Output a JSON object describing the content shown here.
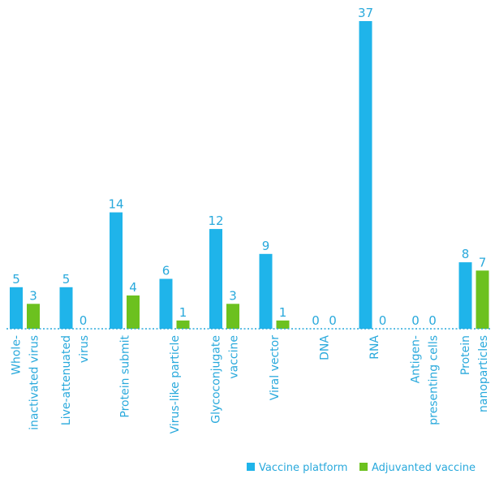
{
  "chart_data": {
    "type": "bar",
    "categories": [
      [
        "Whole-",
        "inactivated virus"
      ],
      [
        "Live-attenuated",
        "virus"
      ],
      [
        "Protein submit"
      ],
      [
        "Virus-like particle"
      ],
      [
        "Glycoconjugate",
        "vaccine"
      ],
      [
        "Viral vector"
      ],
      [
        "DNA"
      ],
      [
        "RNA"
      ],
      [
        "Antigen-",
        "presenting cells"
      ],
      [
        "Protein",
        "nanoparticles"
      ]
    ],
    "series": [
      {
        "name": "Vaccine platform",
        "color": "#1fb4ea",
        "values": [
          5,
          5,
          14,
          6,
          12,
          9,
          0,
          37,
          0,
          8
        ]
      },
      {
        "name": "Adjuvanted vaccine",
        "color": "#6cc11f",
        "values": [
          3,
          0,
          4,
          1,
          3,
          1,
          0,
          0,
          0,
          7
        ]
      }
    ],
    "ylim": [
      0,
      37
    ],
    "grid": false,
    "legend_position": "bottom-right",
    "baseline_style": "dotted",
    "label_color": "#29a9dc"
  }
}
